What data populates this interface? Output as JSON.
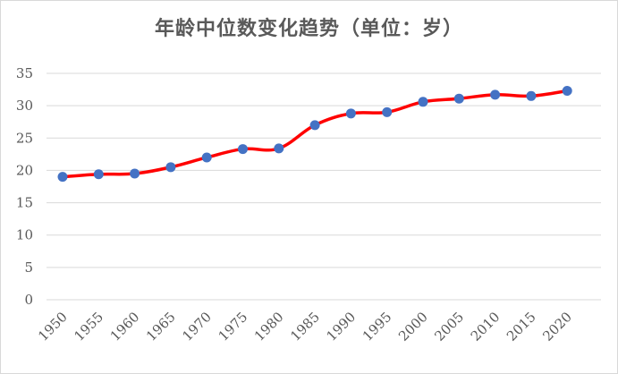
{
  "chart_data": {
    "type": "line",
    "title": "年龄中位数变化趋势（单位：岁）",
    "xlabel": "",
    "ylabel": "",
    "categories": [
      "1950",
      "1955",
      "1960",
      "1965",
      "1970",
      "1975",
      "1980",
      "1985",
      "1990",
      "1995",
      "2000",
      "2005",
      "2010",
      "2015",
      "2020"
    ],
    "series": [
      {
        "values": [
          19.0,
          19.4,
          19.5,
          20.5,
          22.0,
          23.3,
          23.4,
          27.0,
          28.8,
          29.0,
          30.6,
          31.1,
          31.7,
          31.5,
          32.3
        ]
      }
    ],
    "ylim": [
      0,
      35
    ],
    "yticks": [
      "0",
      "5",
      "10",
      "15",
      "20",
      "25",
      "30",
      "35"
    ],
    "grid": true,
    "legend": "none",
    "colors": {
      "line": "#ff0000",
      "marker": "#4472c4",
      "grid": "#d9d9d9",
      "text": "#595959"
    }
  }
}
